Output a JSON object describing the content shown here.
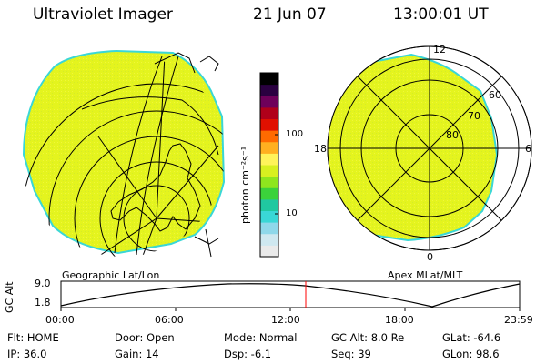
{
  "header": {
    "title": "Ultraviolet Imager",
    "date": "21 Jun 07",
    "time": "13:00:01 UT"
  },
  "colorbar": {
    "unit_label": "photon cm⁻²s⁻¹",
    "tick_top": "100",
    "tick_bottom": "10",
    "colors": [
      "#eaeaea",
      "#cfe8f0",
      "#8fd8ea",
      "#3ad7d6",
      "#20c8a0",
      "#3bd23b",
      "#8ee61e",
      "#d8f020",
      "#fff35a",
      "#ffb020",
      "#ff6a00",
      "#e01000",
      "#b0001a",
      "#6e005a",
      "#2a0040",
      "#000000"
    ]
  },
  "left_panel": {
    "label": "Geographic Lat/Lon",
    "fill_color": "#e6f520",
    "edge_color": "#3ad7d6"
  },
  "right_panel": {
    "label": "Apex MLat/MLT",
    "mlt_labels": {
      "top": "12",
      "left": "18",
      "right": "6",
      "bottom": "0"
    },
    "lat_labels": [
      "60",
      "70",
      "80"
    ]
  },
  "altitude_plot": {
    "ylabel": "GC Alt",
    "y_top": "9.0",
    "y_bottom": "1.8",
    "x_ticks": [
      "00:00",
      "06:00",
      "12:00",
      "18:00",
      "23:59"
    ],
    "marker_color": "#ff0000"
  },
  "info": {
    "filter": "Flt: HOME",
    "ip": "IP: 36.0",
    "door": "Door: Open",
    "gain": "Gain: 14",
    "mode": "Mode: Normal",
    "dsp": "Dsp:   -6.1",
    "gc_alt": "GC Alt: 8.0 Re",
    "seq": "Seq: 39",
    "glat": "GLat: -64.6",
    "glon": "GLon: 98.6"
  }
}
